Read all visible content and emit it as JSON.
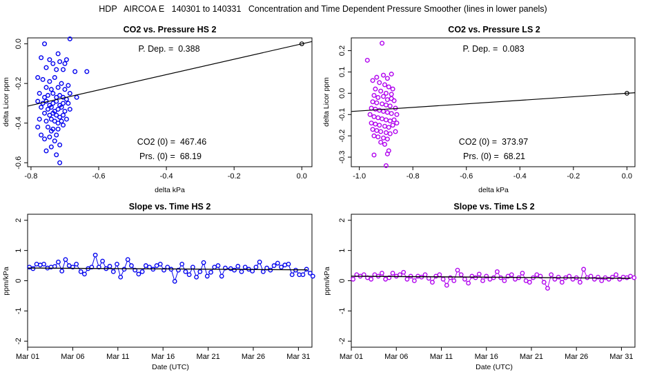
{
  "main_title": "HDP   AIRCOA E   140301 to 140331   Concentration and Time Dependent Pressure Smoother (lines in lower panels)",
  "colors": {
    "hs": "#0000ee",
    "ls": "#b000ee",
    "line": "#000000"
  },
  "panels": {
    "tl": {
      "title": "CO2 vs. Pressure HS 2",
      "xlabel": "delta kPa",
      "ylabel": "delta Licor ppm",
      "pdep": "P. Dep. =  0.388",
      "co2": "CO2 (0) =  467.46",
      "prs": "Prs. (0) =  68.19",
      "xticks": [
        "-0.8",
        "-0.6",
        "-0.4",
        "-0.2",
        "0.0"
      ],
      "yticks": [
        "-0.6",
        "-0.4",
        "-0.2",
        "0.0"
      ]
    },
    "tr": {
      "title": "CO2 vs. Pressure LS 2",
      "xlabel": "delta kPa",
      "ylabel": "delta Licor ppm",
      "pdep": "P. Dep. =  0.083",
      "co2": "CO2 (0) =  373.97",
      "prs": "Prs. (0) =  68.21",
      "xticks": [
        "-1.0",
        "-0.8",
        "-0.6",
        "-0.4",
        "-0.2",
        "0.0"
      ],
      "yticks": [
        "-0.3",
        "-0.2",
        "-0.1",
        "0.0",
        "0.1",
        "0.2"
      ]
    },
    "bl": {
      "title": "Slope vs. Time HS 2",
      "xlabel": "Date (UTC)",
      "ylabel": "ppm/kPa",
      "xticks": [
        "Mar 01",
        "Mar 06",
        "Mar 11",
        "Mar 16",
        "Mar 21",
        "Mar 26",
        "Mar 31"
      ],
      "yticks": [
        "-2",
        "-1",
        "0",
        "1",
        "2"
      ]
    },
    "br": {
      "title": "Slope vs. Time LS 2",
      "xlabel": "Date (UTC)",
      "ylabel": "ppm/kPa",
      "xticks": [
        "Mar 01",
        "Mar 06",
        "Mar 11",
        "Mar 16",
        "Mar 21",
        "Mar 26",
        "Mar 31"
      ],
      "yticks": [
        "-2",
        "-1",
        "0",
        "1",
        "2"
      ]
    }
  },
  "chart_data": [
    {
      "id": "tl",
      "type": "scatter",
      "title": "CO2 vs. Pressure HS 2",
      "xlabel": "delta kPa",
      "ylabel": "delta Licor ppm",
      "xlim": [
        -0.81,
        0.03
      ],
      "ylim": [
        -0.62,
        0.03
      ],
      "color": "#0000ee",
      "fit_line": {
        "slope": 0.388,
        "intercept": 0.0
      },
      "reference_point": [
        0.0,
        0.0
      ],
      "points": [
        [
          -0.76,
          0.0
        ],
        [
          -0.685,
          0.025
        ],
        [
          -0.72,
          -0.05
        ],
        [
          -0.745,
          -0.08
        ],
        [
          -0.77,
          -0.07
        ],
        [
          -0.735,
          -0.1
        ],
        [
          -0.715,
          -0.09
        ],
        [
          -0.695,
          -0.08
        ],
        [
          -0.7,
          -0.1
        ],
        [
          -0.635,
          -0.14
        ],
        [
          -0.755,
          -0.12
        ],
        [
          -0.725,
          -0.13
        ],
        [
          -0.705,
          -0.13
        ],
        [
          -0.67,
          -0.14
        ],
        [
          -0.78,
          -0.17
        ],
        [
          -0.765,
          -0.18
        ],
        [
          -0.745,
          -0.19
        ],
        [
          -0.73,
          -0.17
        ],
        [
          -0.71,
          -0.2
        ],
        [
          -0.69,
          -0.21
        ],
        [
          -0.755,
          -0.22
        ],
        [
          -0.74,
          -0.23
        ],
        [
          -0.72,
          -0.22
        ],
        [
          -0.7,
          -0.23
        ],
        [
          -0.685,
          -0.25
        ],
        [
          -0.665,
          -0.27
        ],
        [
          -0.775,
          -0.25
        ],
        [
          -0.76,
          -0.27
        ],
        [
          -0.75,
          -0.26
        ],
        [
          -0.735,
          -0.25
        ],
        [
          -0.725,
          -0.27
        ],
        [
          -0.715,
          -0.26
        ],
        [
          -0.705,
          -0.27
        ],
        [
          -0.695,
          -0.28
        ],
        [
          -0.78,
          -0.29
        ],
        [
          -0.765,
          -0.3
        ],
        [
          -0.755,
          -0.29
        ],
        [
          -0.745,
          -0.31
        ],
        [
          -0.735,
          -0.3
        ],
        [
          -0.725,
          -0.29
        ],
        [
          -0.715,
          -0.31
        ],
        [
          -0.705,
          -0.3
        ],
        [
          -0.69,
          -0.3
        ],
        [
          -0.77,
          -0.32
        ],
        [
          -0.75,
          -0.33
        ],
        [
          -0.74,
          -0.32
        ],
        [
          -0.73,
          -0.34
        ],
        [
          -0.72,
          -0.33
        ],
        [
          -0.71,
          -0.32
        ],
        [
          -0.7,
          -0.34
        ],
        [
          -0.685,
          -0.33
        ],
        [
          -0.76,
          -0.35
        ],
        [
          -0.745,
          -0.36
        ],
        [
          -0.735,
          -0.35
        ],
        [
          -0.725,
          -0.36
        ],
        [
          -0.715,
          -0.37
        ],
        [
          -0.705,
          -0.36
        ],
        [
          -0.695,
          -0.38
        ],
        [
          -0.775,
          -0.38
        ],
        [
          -0.755,
          -0.39
        ],
        [
          -0.74,
          -0.38
        ],
        [
          -0.73,
          -0.39
        ],
        [
          -0.72,
          -0.4
        ],
        [
          -0.71,
          -0.39
        ],
        [
          -0.75,
          -0.42
        ],
        [
          -0.735,
          -0.43
        ],
        [
          -0.72,
          -0.43
        ],
        [
          -0.705,
          -0.41
        ],
        [
          -0.78,
          -0.42
        ],
        [
          -0.77,
          -0.46
        ],
        [
          -0.74,
          -0.44
        ],
        [
          -0.725,
          -0.46
        ],
        [
          -0.76,
          -0.48
        ],
        [
          -0.745,
          -0.47
        ],
        [
          -0.73,
          -0.49
        ],
        [
          -0.715,
          -0.51
        ],
        [
          -0.755,
          -0.54
        ],
        [
          -0.74,
          -0.52
        ],
        [
          -0.725,
          -0.56
        ],
        [
          -0.715,
          -0.6
        ]
      ]
    },
    {
      "id": "tr",
      "type": "scatter",
      "title": "CO2 vs. Pressure LS 2",
      "xlabel": "delta kPa",
      "ylabel": "delta Licor ppm",
      "xlim": [
        -1.03,
        0.03
      ],
      "ylim": [
        -0.345,
        0.26
      ],
      "color": "#b000ee",
      "fit_line": {
        "slope": 0.083,
        "intercept": 0.0
      },
      "reference_point": [
        0.0,
        0.0
      ],
      "points": [
        [
          -0.97,
          0.155
        ],
        [
          -0.915,
          0.235
        ],
        [
          -0.88,
          0.09
        ],
        [
          -0.935,
          0.075
        ],
        [
          -0.91,
          0.085
        ],
        [
          -0.895,
          0.07
        ],
        [
          -0.95,
          0.06
        ],
        [
          -0.925,
          0.05
        ],
        [
          -0.905,
          0.04
        ],
        [
          -0.89,
          0.03
        ],
        [
          -0.94,
          0.02
        ],
        [
          -0.92,
          0.01
        ],
        [
          -0.9,
          0.0
        ],
        [
          -0.88,
          -0.005
        ],
        [
          -0.875,
          0.02
        ],
        [
          -0.945,
          -0.01
        ],
        [
          -0.93,
          -0.02
        ],
        [
          -0.91,
          -0.015
        ],
        [
          -0.895,
          -0.03
        ],
        [
          -0.88,
          -0.025
        ],
        [
          -0.87,
          -0.035
        ],
        [
          -0.95,
          -0.04
        ],
        [
          -0.935,
          -0.045
        ],
        [
          -0.915,
          -0.05
        ],
        [
          -0.9,
          -0.055
        ],
        [
          -0.885,
          -0.06
        ],
        [
          -0.865,
          -0.07
        ],
        [
          -0.955,
          -0.07
        ],
        [
          -0.94,
          -0.075
        ],
        [
          -0.925,
          -0.08
        ],
        [
          -0.91,
          -0.085
        ],
        [
          -0.895,
          -0.09
        ],
        [
          -0.88,
          -0.095
        ],
        [
          -0.86,
          -0.1
        ],
        [
          -0.96,
          -0.1
        ],
        [
          -0.945,
          -0.11
        ],
        [
          -0.93,
          -0.115
        ],
        [
          -0.915,
          -0.12
        ],
        [
          -0.9,
          -0.125
        ],
        [
          -0.885,
          -0.13
        ],
        [
          -0.87,
          -0.125
        ],
        [
          -0.955,
          -0.14
        ],
        [
          -0.94,
          -0.145
        ],
        [
          -0.925,
          -0.15
        ],
        [
          -0.905,
          -0.155
        ],
        [
          -0.89,
          -0.16
        ],
        [
          -0.875,
          -0.15
        ],
        [
          -0.86,
          -0.14
        ],
        [
          -0.95,
          -0.17
        ],
        [
          -0.935,
          -0.175
        ],
        [
          -0.92,
          -0.18
        ],
        [
          -0.9,
          -0.185
        ],
        [
          -0.885,
          -0.19
        ],
        [
          -0.865,
          -0.18
        ],
        [
          -0.945,
          -0.2
        ],
        [
          -0.93,
          -0.205
        ],
        [
          -0.91,
          -0.21
        ],
        [
          -0.895,
          -0.215
        ],
        [
          -0.92,
          -0.23
        ],
        [
          -0.905,
          -0.24
        ],
        [
          -0.89,
          -0.27
        ],
        [
          -0.945,
          -0.29
        ],
        [
          -0.895,
          -0.285
        ],
        [
          -0.9,
          -0.34
        ]
      ]
    },
    {
      "id": "bl",
      "type": "line",
      "title": "Slope vs. Time HS 2",
      "xlabel": "Date (UTC)",
      "ylabel": "ppm/kPa",
      "x_unit": "day of March 2014",
      "xlim": [
        0,
        31.5
      ],
      "ylim": [
        -2.2,
        2.2
      ],
      "color": "#0000ee",
      "smoother": [
        [
          0,
          0.42
        ],
        [
          31,
          0.36
        ]
      ],
      "points": [
        [
          0.2,
          0.45
        ],
        [
          0.6,
          0.4
        ],
        [
          1.0,
          0.55
        ],
        [
          1.4,
          0.52
        ],
        [
          1.8,
          0.55
        ],
        [
          2.2,
          0.42
        ],
        [
          2.6,
          0.45
        ],
        [
          3.0,
          0.47
        ],
        [
          3.4,
          0.62
        ],
        [
          3.8,
          0.32
        ],
        [
          4.2,
          0.7
        ],
        [
          4.6,
          0.5
        ],
        [
          5.0,
          0.45
        ],
        [
          5.4,
          0.55
        ],
        [
          5.9,
          0.3
        ],
        [
          6.3,
          0.22
        ],
        [
          6.7,
          0.4
        ],
        [
          7.1,
          0.45
        ],
        [
          7.5,
          0.85
        ],
        [
          7.9,
          0.45
        ],
        [
          8.3,
          0.65
        ],
        [
          8.7,
          0.4
        ],
        [
          9.1,
          0.48
        ],
        [
          9.5,
          0.3
        ],
        [
          9.9,
          0.55
        ],
        [
          10.3,
          0.12
        ],
        [
          10.7,
          0.38
        ],
        [
          11.1,
          0.7
        ],
        [
          11.5,
          0.5
        ],
        [
          11.9,
          0.35
        ],
        [
          12.3,
          0.22
        ],
        [
          12.7,
          0.3
        ],
        [
          13.1,
          0.5
        ],
        [
          13.5,
          0.45
        ],
        [
          13.9,
          0.38
        ],
        [
          14.3,
          0.5
        ],
        [
          14.7,
          0.55
        ],
        [
          15.1,
          0.35
        ],
        [
          15.5,
          0.45
        ],
        [
          15.9,
          0.38
        ],
        [
          16.3,
          -0.02
        ],
        [
          16.7,
          0.35
        ],
        [
          17.1,
          0.55
        ],
        [
          17.5,
          0.3
        ],
        [
          17.9,
          0.2
        ],
        [
          18.3,
          0.45
        ],
        [
          18.7,
          0.12
        ],
        [
          19.1,
          0.3
        ],
        [
          19.5,
          0.6
        ],
        [
          19.9,
          0.15
        ],
        [
          20.3,
          0.28
        ],
        [
          20.7,
          0.45
        ],
        [
          21.1,
          0.5
        ],
        [
          21.5,
          0.15
        ],
        [
          21.9,
          0.42
        ],
        [
          22.5,
          0.4
        ],
        [
          22.9,
          0.35
        ],
        [
          23.3,
          0.48
        ],
        [
          23.7,
          0.3
        ],
        [
          24.1,
          0.45
        ],
        [
          24.5,
          0.38
        ],
        [
          24.9,
          0.32
        ],
        [
          25.3,
          0.45
        ],
        [
          25.7,
          0.62
        ],
        [
          26.1,
          0.3
        ],
        [
          26.5,
          0.42
        ],
        [
          26.9,
          0.35
        ],
        [
          27.3,
          0.5
        ],
        [
          27.7,
          0.58
        ],
        [
          28.1,
          0.45
        ],
        [
          28.5,
          0.52
        ],
        [
          28.9,
          0.55
        ],
        [
          29.3,
          0.2
        ],
        [
          29.7,
          0.35
        ],
        [
          30.1,
          0.2
        ],
        [
          30.5,
          0.2
        ],
        [
          30.9,
          0.38
        ],
        [
          31.3,
          0.25
        ],
        [
          31.6,
          0.15
        ]
      ]
    },
    {
      "id": "br",
      "type": "line",
      "title": "Slope vs. Time LS 2",
      "xlabel": "Date (UTC)",
      "ylabel": "ppm/kPa",
      "x_unit": "day of March 2014",
      "xlim": [
        0,
        31.5
      ],
      "ylim": [
        -2.2,
        2.2
      ],
      "color": "#b000ee",
      "smoother": [
        [
          0,
          0.15
        ],
        [
          31,
          0.08
        ]
      ],
      "points": [
        [
          0.2,
          0.05
        ],
        [
          0.6,
          0.2
        ],
        [
          1.0,
          0.15
        ],
        [
          1.4,
          0.2
        ],
        [
          1.8,
          0.1
        ],
        [
          2.2,
          0.05
        ],
        [
          2.6,
          0.2
        ],
        [
          3.0,
          0.15
        ],
        [
          3.4,
          0.25
        ],
        [
          3.8,
          0.05
        ],
        [
          4.2,
          0.1
        ],
        [
          4.6,
          0.25
        ],
        [
          5.0,
          0.15
        ],
        [
          5.4,
          0.2
        ],
        [
          5.8,
          0.28
        ],
        [
          6.2,
          0.05
        ],
        [
          6.6,
          0.15
        ],
        [
          7.0,
          0.0
        ],
        [
          7.4,
          0.15
        ],
        [
          7.8,
          0.12
        ],
        [
          8.2,
          0.2
        ],
        [
          8.6,
          0.08
        ],
        [
          9.0,
          -0.05
        ],
        [
          9.4,
          0.15
        ],
        [
          9.8,
          0.2
        ],
        [
          10.2,
          0.05
        ],
        [
          10.6,
          -0.15
        ],
        [
          11.0,
          0.1
        ],
        [
          11.4,
          0.0
        ],
        [
          11.8,
          0.35
        ],
        [
          12.2,
          0.2
        ],
        [
          12.6,
          0.05
        ],
        [
          13.0,
          -0.08
        ],
        [
          13.4,
          0.15
        ],
        [
          13.8,
          0.1
        ],
        [
          14.2,
          0.22
        ],
        [
          14.6,
          0.0
        ],
        [
          15.0,
          0.15
        ],
        [
          15.4,
          0.05
        ],
        [
          15.8,
          0.1
        ],
        [
          16.2,
          0.3
        ],
        [
          16.6,
          0.1
        ],
        [
          17.0,
          0.0
        ],
        [
          17.4,
          0.15
        ],
        [
          17.8,
          0.2
        ],
        [
          18.2,
          0.05
        ],
        [
          18.6,
          0.1
        ],
        [
          19.0,
          0.25
        ],
        [
          19.4,
          0.0
        ],
        [
          19.8,
          -0.05
        ],
        [
          20.2,
          0.1
        ],
        [
          20.6,
          0.2
        ],
        [
          21.0,
          0.15
        ],
        [
          21.4,
          -0.05
        ],
        [
          21.8,
          -0.25
        ],
        [
          22.2,
          0.2
        ],
        [
          22.6,
          0.05
        ],
        [
          23.0,
          0.12
        ],
        [
          23.4,
          -0.05
        ],
        [
          23.8,
          0.1
        ],
        [
          24.2,
          0.15
        ],
        [
          24.6,
          0.05
        ],
        [
          25.0,
          0.1
        ],
        [
          25.4,
          -0.05
        ],
        [
          25.8,
          0.38
        ],
        [
          26.2,
          0.1
        ],
        [
          26.6,
          0.15
        ],
        [
          27.0,
          0.05
        ],
        [
          27.4,
          0.12
        ],
        [
          27.8,
          0.0
        ],
        [
          28.2,
          0.1
        ],
        [
          28.6,
          0.05
        ],
        [
          29.0,
          0.12
        ],
        [
          29.4,
          0.2
        ],
        [
          29.8,
          0.05
        ],
        [
          30.2,
          0.12
        ],
        [
          30.6,
          0.1
        ],
        [
          31.0,
          0.15
        ],
        [
          31.4,
          0.1
        ]
      ]
    }
  ]
}
